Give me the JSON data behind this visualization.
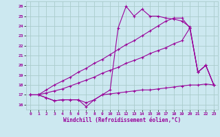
{
  "xlabel": "Windchill (Refroidissement éolien,°C)",
  "bg_color": "#cce8f0",
  "grid_color": "#aacccc",
  "line_color": "#990099",
  "xlim": [
    -0.5,
    23.5
  ],
  "ylim": [
    15.5,
    26.5
  ],
  "yticks": [
    16,
    17,
    18,
    19,
    20,
    21,
    22,
    23,
    24,
    25,
    26
  ],
  "xticks": [
    0,
    1,
    2,
    3,
    4,
    5,
    6,
    7,
    8,
    9,
    10,
    11,
    12,
    13,
    14,
    15,
    16,
    17,
    18,
    19,
    20,
    21,
    22,
    23
  ],
  "series": [
    {
      "x": [
        0,
        1,
        2,
        3,
        4,
        5,
        6,
        7,
        8,
        9,
        10,
        11,
        12,
        13,
        14,
        15,
        16,
        17,
        18,
        19,
        20,
        21,
        22,
        23
      ],
      "y": [
        17.0,
        17.0,
        16.7,
        16.4,
        16.5,
        16.5,
        16.5,
        15.8,
        16.5,
        17.0,
        17.1,
        17.2,
        17.3,
        17.4,
        17.5,
        17.5,
        17.6,
        17.7,
        17.8,
        17.9,
        18.0,
        18.0,
        18.1,
        18.0
      ]
    },
    {
      "x": [
        0,
        1,
        2,
        3,
        4,
        5,
        6,
        7,
        8,
        9,
        10,
        11,
        12,
        13,
        14,
        15,
        16,
        17,
        18,
        19,
        20,
        21,
        22,
        23
      ],
      "y": [
        17.0,
        17.0,
        17.2,
        17.4,
        17.6,
        17.9,
        18.2,
        18.5,
        18.8,
        19.2,
        19.5,
        19.8,
        20.2,
        20.5,
        20.8,
        21.2,
        21.5,
        21.8,
        22.2,
        22.5,
        23.8,
        19.3,
        20.0,
        18.0
      ]
    },
    {
      "x": [
        0,
        1,
        2,
        3,
        4,
        5,
        6,
        7,
        8,
        9,
        10,
        11,
        12,
        13,
        14,
        15,
        16,
        17,
        18,
        19,
        20,
        21,
        22,
        23
      ],
      "y": [
        17.0,
        17.0,
        17.5,
        18.0,
        18.4,
        18.8,
        19.3,
        19.7,
        20.2,
        20.6,
        21.1,
        21.6,
        22.1,
        22.5,
        23.0,
        23.5,
        24.0,
        24.5,
        24.8,
        24.8,
        23.8,
        19.3,
        20.0,
        18.0
      ]
    },
    {
      "x": [
        0,
        1,
        2,
        3,
        4,
        5,
        6,
        7,
        8,
        9,
        10,
        11,
        12,
        13,
        14,
        15,
        16,
        17,
        18,
        19,
        20,
        21,
        22,
        23
      ],
      "y": [
        17.0,
        17.0,
        16.7,
        16.4,
        16.5,
        16.5,
        16.5,
        16.2,
        16.5,
        17.0,
        17.5,
        23.8,
        26.0,
        25.0,
        25.7,
        25.0,
        25.0,
        24.8,
        24.7,
        24.5,
        23.9,
        19.3,
        20.0,
        18.0
      ]
    }
  ]
}
